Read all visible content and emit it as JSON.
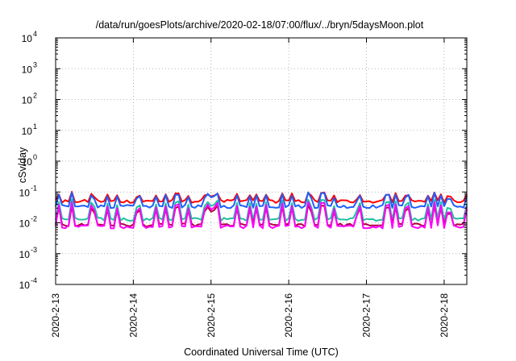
{
  "chart_data": {
    "type": "line",
    "title": "/data/run/goesPlots/archive/2020-02-18/07:00/flux/../bryn/5daysMoon.plot",
    "xlabel": "Coordinated Universal Time (UTC)",
    "ylabel": "cSv/day",
    "y_scale": "log",
    "ylim": [
      0.0001,
      10000
    ],
    "xlim": [
      "2020-02-13 00:00",
      "2020-02-18 07:00"
    ],
    "grid": true,
    "x_ticks": [
      "2020-2-13",
      "2020-2-14",
      "2020-2-15",
      "2020-2-16",
      "2020-2-17",
      "2020-2-18"
    ],
    "y_ticks": [
      {
        "value": 0.0001,
        "base": "10",
        "exp": "-4"
      },
      {
        "value": 0.001,
        "base": "10",
        "exp": "-3"
      },
      {
        "value": 0.01,
        "base": "10",
        "exp": "-2"
      },
      {
        "value": 0.1,
        "base": "10",
        "exp": "-1"
      },
      {
        "value": 1,
        "base": "10",
        "exp": "0"
      },
      {
        "value": 10,
        "base": "10",
        "exp": "1"
      },
      {
        "value": 100,
        "base": "10",
        "exp": "2"
      },
      {
        "value": 1000,
        "base": "10",
        "exp": "3"
      },
      {
        "value": 10000,
        "base": "10",
        "exp": "4"
      }
    ],
    "series": [
      {
        "color": "#ff0000",
        "baseline": 0.05,
        "spike_max": 0.1
      },
      {
        "color": "#1f5fff",
        "baseline": 0.034,
        "spike_max": 0.1
      },
      {
        "color": "#20c0a0",
        "baseline": 0.013,
        "spike_max": 0.06
      },
      {
        "color": "#b00040",
        "baseline": 0.0085,
        "spike_max": 0.04
      },
      {
        "color": "#ff00ff",
        "baseline": 0.0075,
        "spike_max": 0.05
      }
    ]
  }
}
